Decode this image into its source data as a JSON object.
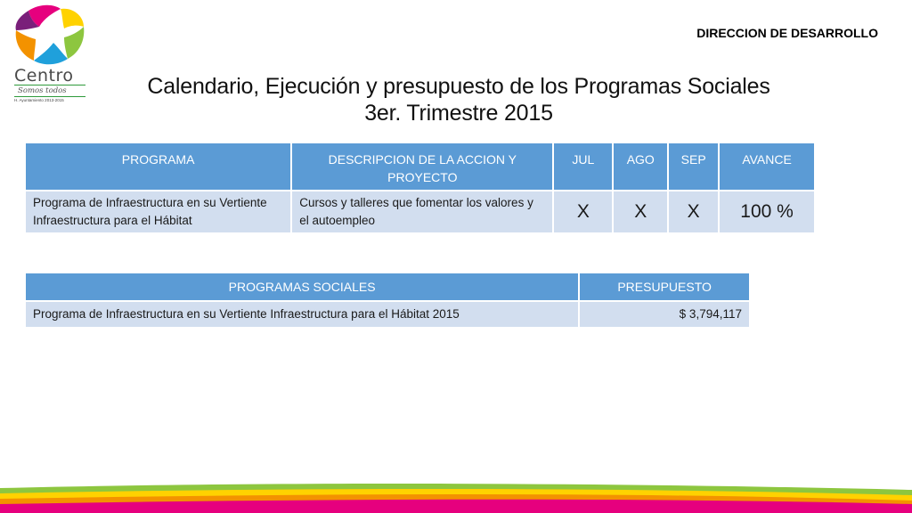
{
  "header": {
    "department": "DIRECCION DE DESARROLLO",
    "title_line1": "Calendario, Ejecución y presupuesto de los Programas Sociales",
    "title_line2": "3er. Trimestre 2015"
  },
  "logo": {
    "word": "Centro",
    "tagline": "Somos todos",
    "small_text": "H. Ayuntamiento 2013-2015"
  },
  "schedule_table": {
    "headers": {
      "programa": "PROGRAMA",
      "descripcion": "DESCRIPCION DE LA ACCION Y PROYECTO",
      "jul": "JUL",
      "ago": "AGO",
      "sep": "SEP",
      "avance": "AVANCE"
    },
    "rows": [
      {
        "programa": "Programa de Infraestructura en su Vertiente Infraestructura para el Hábitat",
        "descripcion": "Cursos y talleres que fomentar los valores y el autoempleo",
        "jul": "X",
        "ago": "X",
        "sep": "X",
        "avance": "100 %"
      }
    ]
  },
  "budget_table": {
    "headers": {
      "programas": "PROGRAMAS SOCIALES",
      "presupuesto": "PRESUPUESTO"
    },
    "rows": [
      {
        "programa": "Programa de Infraestructura en su Vertiente Infraestructura para el Hábitat 2015",
        "presupuesto": "$ 3,794,117"
      }
    ]
  },
  "colors": {
    "header_fill": "#5b9bd5",
    "row_fill": "#d2deef",
    "band_magenta": "#e6007e",
    "band_green": "#8dc63f",
    "band_yellow": "#ffd200",
    "band_orange": "#f39200"
  }
}
